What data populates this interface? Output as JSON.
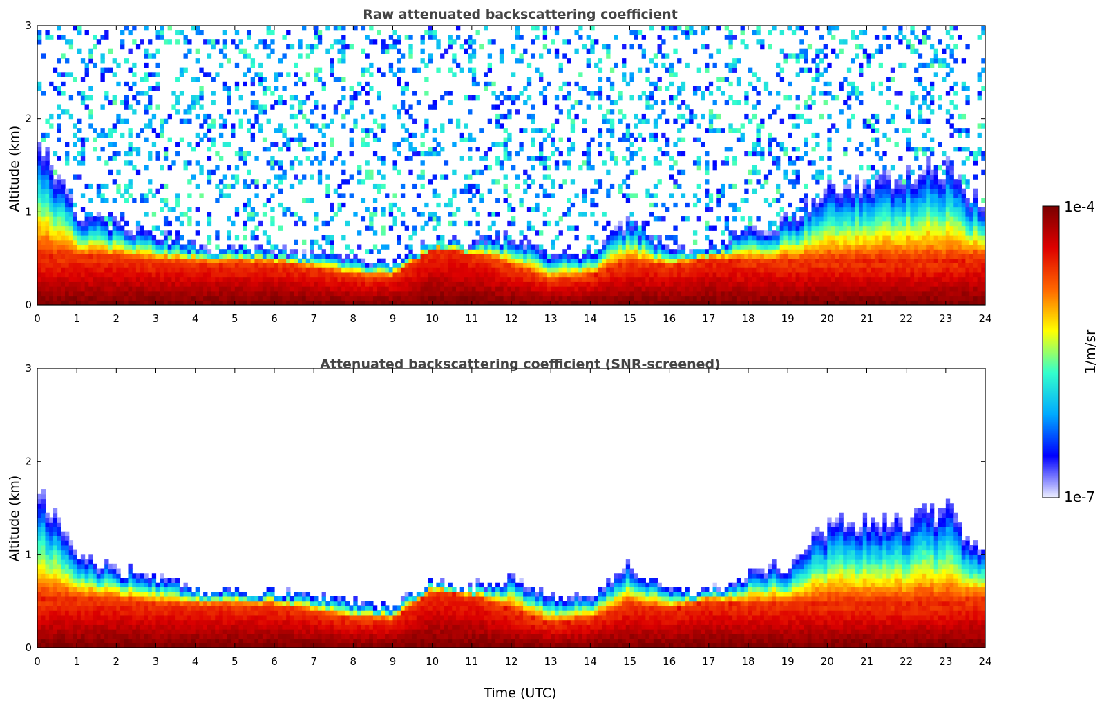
{
  "chart_data": [
    {
      "type": "heatmap",
      "title": "Raw attenuated backscattering coefficient",
      "xlabel": "",
      "ylabel": "Altitude (km)",
      "xlim": [
        0,
        24
      ],
      "ylim": [
        0,
        3
      ],
      "x_ticks": [
        "0",
        "1",
        "2",
        "3",
        "4",
        "5",
        "6",
        "7",
        "8",
        "9",
        "10",
        "11",
        "12",
        "13",
        "14",
        "15",
        "16",
        "17",
        "18",
        "19",
        "20",
        "21",
        "22",
        "23",
        "24"
      ],
      "y_ticks": [
        "0",
        "1",
        "2",
        "3"
      ],
      "layer_top_km_by_hour": [
        1.75,
        1.0,
        0.85,
        0.78,
        0.62,
        0.6,
        0.6,
        0.55,
        0.5,
        0.45,
        0.7,
        0.65,
        0.75,
        0.55,
        0.55,
        0.9,
        0.6,
        0.6,
        0.8,
        0.9,
        1.3,
        1.35,
        1.4,
        1.5,
        1.0
      ],
      "dense_layer_top_km_by_hour": [
        0.5,
        0.5,
        0.5,
        0.45,
        0.45,
        0.45,
        0.45,
        0.38,
        0.3,
        0.3,
        0.6,
        0.55,
        0.4,
        0.25,
        0.3,
        0.45,
        0.4,
        0.5,
        0.45,
        0.45,
        0.45,
        0.45,
        0.45,
        0.45,
        0.5
      ],
      "noise_above_layer": true
    },
    {
      "type": "heatmap",
      "title": "Attenuated backscattering coefficient (SNR-screened)",
      "xlabel": "Time (UTC)",
      "ylabel": "Altitude (km)",
      "xlim": [
        0,
        24
      ],
      "ylim": [
        0,
        3
      ],
      "x_ticks": [
        "0",
        "1",
        "2",
        "3",
        "4",
        "5",
        "6",
        "7",
        "8",
        "9",
        "10",
        "11",
        "12",
        "13",
        "14",
        "15",
        "16",
        "17",
        "18",
        "19",
        "20",
        "21",
        "22",
        "23",
        "24"
      ],
      "y_ticks": [
        "0",
        "1",
        "2",
        "3"
      ],
      "layer_top_km_by_hour": [
        1.75,
        1.0,
        0.85,
        0.78,
        0.62,
        0.6,
        0.6,
        0.55,
        0.5,
        0.45,
        0.7,
        0.65,
        0.75,
        0.55,
        0.55,
        0.9,
        0.6,
        0.6,
        0.8,
        0.9,
        1.3,
        1.35,
        1.4,
        1.5,
        1.0
      ],
      "dense_layer_top_km_by_hour": [
        0.5,
        0.5,
        0.5,
        0.45,
        0.45,
        0.45,
        0.45,
        0.38,
        0.3,
        0.3,
        0.6,
        0.55,
        0.4,
        0.25,
        0.3,
        0.45,
        0.4,
        0.5,
        0.45,
        0.45,
        0.45,
        0.45,
        0.45,
        0.45,
        0.5
      ],
      "noise_above_layer": false
    }
  ],
  "colorbar": {
    "label": "1/m/sr",
    "max_label": "1e-4",
    "min_label": "1e-7",
    "colormap": [
      "#eef0ff",
      "#0000ff",
      "#00aaff",
      "#33ffcc",
      "#ffff00",
      "#ff6600",
      "#dd0000",
      "#7a0000"
    ]
  }
}
